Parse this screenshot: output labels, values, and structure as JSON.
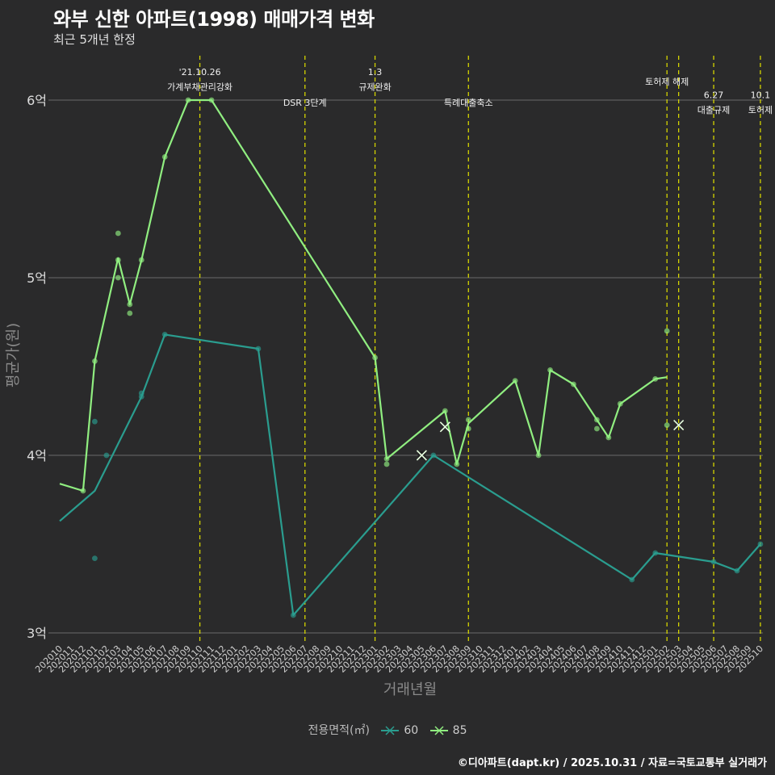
{
  "header": {
    "title": "와부 신한 아파트(1998) 매매가격 변화",
    "subtitle": "최근 5개년 한정"
  },
  "footer": {
    "caption": "©디아파트(dapt.kr) / 2025.10.31 / 자료=국토교통부 실거래가"
  },
  "legend": {
    "title": "전용면적(㎡)"
  },
  "colors": {
    "background": "#2a2a2b",
    "grid": "#6b6b6b",
    "vline": "#d4d400",
    "s60": "#2a9d8f",
    "s85": "#90ee80"
  },
  "chart_data": {
    "type": "line",
    "title": "와부 신한 아파트(1998) 매매가격 변화",
    "subtitle": "최근 5개년 한정",
    "xlabel": "거래년월",
    "ylabel": "평균가(원)",
    "ylim": [
      2.95,
      6.3
    ],
    "y_ticks": [
      3,
      4,
      5,
      6
    ],
    "y_tick_labels": [
      "3억",
      "4억",
      "5억",
      "6억"
    ],
    "x_categories": [
      "202010",
      "202011",
      "202012",
      "202101",
      "202102",
      "202103",
      "202104",
      "202105",
      "202106",
      "202107",
      "202108",
      "202109",
      "202110",
      "202111",
      "202112",
      "202201",
      "202202",
      "202203",
      "202204",
      "202205",
      "202206",
      "202207",
      "202208",
      "202209",
      "202210",
      "202211",
      "202212",
      "202301",
      "202302",
      "202303",
      "202304",
      "202305",
      "202306",
      "202307",
      "202308",
      "202309",
      "202310",
      "202311",
      "202312",
      "202401",
      "202402",
      "202403",
      "202404",
      "202405",
      "202406",
      "202407",
      "202408",
      "202409",
      "202410",
      "202411",
      "202412",
      "202501",
      "202502",
      "202503",
      "202504",
      "202505",
      "202506",
      "202507",
      "202508",
      "202509",
      "202510"
    ],
    "x_tick_labels": [
      "202010",
      "202011",
      "202012",
      "202101",
      "202102",
      "202103",
      "202104",
      "202105",
      "202106",
      "202107",
      "202108",
      "202109",
      "202110",
      "202111",
      "202112",
      "202201",
      "202202",
      "202203",
      "202204",
      "202205",
      "202206",
      "202207",
      "202208",
      "202209",
      "202210",
      "202211",
      "202212",
      "202301",
      "202302",
      "202303",
      "202304",
      "202305",
      "202306",
      "202307",
      "202308",
      "202309",
      "202310",
      "202311",
      "202312",
      "202401",
      "202402",
      "202403",
      "202404",
      "202405",
      "202406",
      "202407",
      "202408",
      "202409",
      "202410",
      "202411",
      "202412",
      "202501",
      "202502",
      "202503",
      "202504",
      "202505",
      "202506",
      "202507",
      "202508",
      "202509",
      "202510"
    ],
    "series": [
      {
        "name": "60",
        "color": "#2a9d8f",
        "line": [
          [
            0,
            3.63
          ],
          [
            3,
            3.8
          ],
          [
            7,
            4.33
          ],
          [
            9,
            4.68
          ],
          [
            17,
            4.6
          ],
          [
            20,
            3.1
          ],
          [
            32,
            4.0
          ],
          [
            49,
            3.3
          ],
          [
            51,
            3.45
          ],
          [
            56,
            3.4
          ],
          [
            58,
            3.35
          ],
          [
            60,
            3.5
          ]
        ],
        "points": [
          [
            3,
            4.19
          ],
          [
            3,
            3.42
          ],
          [
            4,
            4.0
          ],
          [
            7,
            4.35
          ],
          [
            7,
            4.33
          ],
          [
            9,
            4.68
          ],
          [
            17,
            4.6
          ],
          [
            20,
            3.1
          ],
          [
            32,
            4.0
          ],
          [
            49,
            3.3
          ],
          [
            51,
            3.45
          ],
          [
            56,
            3.4
          ],
          [
            58,
            3.35
          ],
          [
            60,
            3.5
          ]
        ],
        "marks": [
          [
            31,
            4.0
          ]
        ]
      },
      {
        "name": "85",
        "color": "#90ee80",
        "line": [
          [
            0,
            3.84
          ],
          [
            2,
            3.8
          ],
          [
            3,
            4.53
          ],
          [
            5,
            5.11
          ],
          [
            6,
            4.85
          ],
          [
            7,
            5.1
          ],
          [
            9,
            5.68
          ],
          [
            11,
            6.0
          ],
          [
            13,
            6.0
          ],
          [
            27,
            4.55
          ],
          [
            28,
            3.98
          ],
          [
            33,
            4.25
          ],
          [
            34,
            3.95
          ],
          [
            35,
            4.18
          ],
          [
            39,
            4.42
          ],
          [
            41,
            4.0
          ],
          [
            42,
            4.48
          ],
          [
            44,
            4.4
          ],
          [
            46,
            4.2
          ],
          [
            47,
            4.1
          ],
          [
            48,
            4.29
          ],
          [
            51,
            4.43
          ],
          [
            52,
            4.44
          ]
        ],
        "points": [
          [
            2,
            3.8
          ],
          [
            3,
            4.53
          ],
          [
            5,
            5.25
          ],
          [
            5,
            5.0
          ],
          [
            5,
            5.1
          ],
          [
            6,
            4.85
          ],
          [
            6,
            4.8
          ],
          [
            7,
            5.1
          ],
          [
            9,
            5.68
          ],
          [
            11,
            6.0
          ],
          [
            13,
            6.0
          ],
          [
            27,
            4.55
          ],
          [
            28,
            3.95
          ],
          [
            28,
            3.98
          ],
          [
            33,
            4.25
          ],
          [
            34,
            3.95
          ],
          [
            35,
            4.2
          ],
          [
            35,
            4.15
          ],
          [
            39,
            4.42
          ],
          [
            41,
            4.0
          ],
          [
            42,
            4.48
          ],
          [
            44,
            4.4
          ],
          [
            46,
            4.2
          ],
          [
            46,
            4.15
          ],
          [
            47,
            4.1
          ],
          [
            48,
            4.29
          ],
          [
            51,
            4.43
          ],
          [
            52,
            4.7
          ],
          [
            52,
            4.17
          ]
        ],
        "marks": [
          [
            31,
            4.0
          ],
          [
            33,
            4.16
          ],
          [
            53,
            4.17
          ]
        ]
      }
    ],
    "events": [
      {
        "x": 12.0,
        "label_top": "'21.10.26",
        "label_bottom": "가계부채관리강화",
        "y_top": 6.16,
        "y_bottom": 6.08
      },
      {
        "x": 21.0,
        "label_top": "",
        "label_bottom": "DSR 3단계",
        "y_top": 6.0,
        "y_bottom": 5.99
      },
      {
        "x": 27.0,
        "label_top": "1.3",
        "label_bottom": "규제완화",
        "y_top": 6.16,
        "y_bottom": 6.08
      },
      {
        "x": 35.0,
        "label_top": "",
        "label_bottom": "특례대출축소",
        "y_top": 6.0,
        "y_bottom": 5.99
      },
      {
        "x": 52.0,
        "label_top": "",
        "label_bottom": "토허제 해제",
        "y_top": 6.12,
        "y_bottom": 6.11
      },
      {
        "x": 53.0,
        "label_top": "",
        "label_bottom": "",
        "y_top": 0,
        "y_bottom": 0
      },
      {
        "x": 56.0,
        "label_top": "6.27",
        "label_bottom": "대출규제",
        "y_top": 6.03,
        "y_bottom": 5.95
      },
      {
        "x": 60.0,
        "label_top": "10.1",
        "label_bottom": "토허제",
        "y_top": 6.03,
        "y_bottom": 5.95
      }
    ],
    "legend_title": "전용면적(㎡)",
    "legend_entries": [
      "60",
      "85"
    ]
  }
}
